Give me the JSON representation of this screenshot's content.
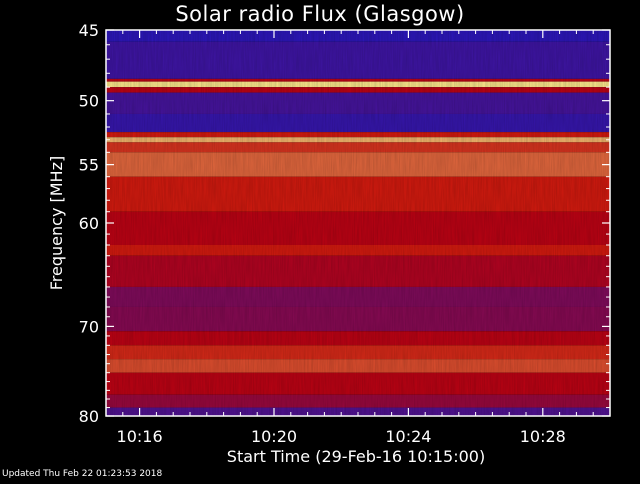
{
  "page": {
    "updated": "Updated Thu Feb 22 01:23:53 2018"
  },
  "chart_data": {
    "type": "heatmap",
    "title": "Solar radio Flux (Glasgow)",
    "xlabel": "Start Time (29-Feb-16 10:15:00)",
    "ylabel": "Frequency [MHz]",
    "x_ticks": [
      "10:16",
      "10:20",
      "10:24",
      "10:28"
    ],
    "x_tick_minutes": [
      1,
      5,
      9,
      13
    ],
    "xlim_minutes": [
      0,
      15
    ],
    "y_ticks": [
      45,
      50,
      55,
      60,
      70,
      80
    ],
    "ylim": [
      45,
      80
    ],
    "y_scale": "log",
    "colormap": {
      "low": "#1a1acc",
      "mid": "#cc0000",
      "high": "#ffff99"
    },
    "bands": [
      {
        "f0": 45.0,
        "f1": 45.8,
        "level": 0.05
      },
      {
        "f0": 45.8,
        "f1": 48.4,
        "level": 0.1
      },
      {
        "f0": 48.4,
        "f1": 48.6,
        "level": 0.45
      },
      {
        "f0": 48.6,
        "f1": 49.0,
        "level": 0.95
      },
      {
        "f0": 49.0,
        "f1": 49.4,
        "level": 0.45
      },
      {
        "f0": 49.4,
        "f1": 51.0,
        "level": 0.12
      },
      {
        "f0": 51.0,
        "f1": 52.4,
        "level": 0.08
      },
      {
        "f0": 52.4,
        "f1": 52.8,
        "level": 0.55
      },
      {
        "f0": 52.8,
        "f1": 53.2,
        "level": 0.85
      },
      {
        "f0": 53.2,
        "f1": 54.0,
        "level": 0.6
      },
      {
        "f0": 54.0,
        "f1": 56.0,
        "level": 0.7
      },
      {
        "f0": 56.0,
        "f1": 59.0,
        "level": 0.55
      },
      {
        "f0": 59.0,
        "f1": 62.0,
        "level": 0.45
      },
      {
        "f0": 62.0,
        "f1": 63.0,
        "level": 0.55
      },
      {
        "f0": 63.0,
        "f1": 66.0,
        "level": 0.42
      },
      {
        "f0": 66.0,
        "f1": 68.0,
        "level": 0.28
      },
      {
        "f0": 68.0,
        "f1": 70.5,
        "level": 0.3
      },
      {
        "f0": 70.5,
        "f1": 72.0,
        "level": 0.45
      },
      {
        "f0": 72.0,
        "f1": 73.5,
        "level": 0.58
      },
      {
        "f0": 73.5,
        "f1": 75.0,
        "level": 0.65
      },
      {
        "f0": 75.0,
        "f1": 77.5,
        "level": 0.45
      },
      {
        "f0": 77.5,
        "f1": 79.0,
        "level": 0.35
      },
      {
        "f0": 79.0,
        "f1": 80.0,
        "level": 0.15
      }
    ]
  }
}
